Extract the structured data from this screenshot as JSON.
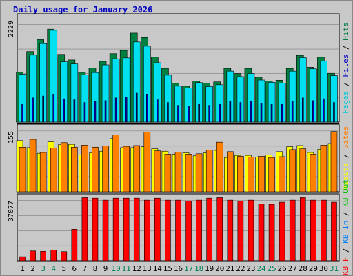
{
  "title": "Daily usage for January 2026",
  "chart_data": [
    {
      "type": "bar",
      "panel": "traffic",
      "ymax": 2229,
      "ymax_label": "2229",
      "grid": true,
      "categories": [
        "1",
        "2",
        "3",
        "4",
        "5",
        "6",
        "7",
        "8",
        "9",
        "10",
        "11",
        "12",
        "13",
        "14",
        "15",
        "16",
        "17",
        "18",
        "19",
        "20",
        "21",
        "22",
        "23",
        "24",
        "25",
        "26",
        "27",
        "28",
        "29",
        "30",
        "31"
      ],
      "series": [
        {
          "name": "Hits",
          "color": "#008040",
          "values": [
            1065,
            1510,
            1765,
            1990,
            1450,
            1330,
            1065,
            1160,
            1300,
            1465,
            1535,
            1905,
            1810,
            1395,
            1150,
            830,
            770,
            880,
            835,
            860,
            1150,
            1040,
            1150,
            960,
            880,
            895,
            1150,
            1430,
            1175,
            1390,
            1045
          ]
        },
        {
          "name": "Files",
          "color": "#00e0f0",
          "values": [
            1025,
            1435,
            1680,
            1965,
            1290,
            1245,
            1010,
            1060,
            1225,
            1355,
            1375,
            1715,
            1625,
            1270,
            1005,
            770,
            730,
            845,
            760,
            800,
            1090,
            975,
            1040,
            900,
            850,
            835,
            1090,
            1380,
            1140,
            1305,
            995
          ]
        },
        {
          "name": "Pages",
          "color": "#0000c0",
          "values": [
            380,
            520,
            560,
            600,
            500,
            480,
            420,
            440,
            460,
            520,
            540,
            620,
            600,
            480,
            420,
            360,
            340,
            380,
            360,
            380,
            440,
            420,
            440,
            400,
            380,
            380,
            440,
            520,
            460,
            500,
            420
          ]
        }
      ]
    },
    {
      "type": "bar",
      "panel": "visits",
      "ymax": 155,
      "ymax_label": "155",
      "grid": true,
      "categories": [
        "1",
        "2",
        "3",
        "4",
        "5",
        "6",
        "7",
        "8",
        "9",
        "10",
        "11",
        "12",
        "13",
        "14",
        "15",
        "16",
        "17",
        "18",
        "19",
        "20",
        "21",
        "22",
        "23",
        "24",
        "25",
        "26",
        "27",
        "28",
        "29",
        "30",
        "31"
      ],
      "series": [
        {
          "name": "Visits",
          "color": "#ffff00",
          "values": [
            125,
            108,
            94,
            122,
            115,
            116,
            90,
            95,
            99,
            130,
            108,
            108,
            110,
            105,
            99,
            92,
            95,
            88,
            95,
            101,
            84,
            89,
            89,
            85,
            90,
            98,
            110,
            113,
            96,
            104,
            118
          ]
        },
        {
          "name": "Sites",
          "color": "#ff8000",
          "values": [
            109,
            128,
            96,
            107,
            120,
            109,
            114,
            109,
            112,
            139,
            111,
            113,
            146,
            100,
            92,
            97,
            92,
            93,
            102,
            121,
            98,
            87,
            85,
            87,
            84,
            86,
            103,
            105,
            92,
            114,
            147
          ]
        }
      ]
    },
    {
      "type": "bar",
      "panel": "kbytes",
      "ymax": 37077,
      "ymax_label": "37077",
      "grid": true,
      "categories": [
        "1",
        "2",
        "3",
        "4",
        "5",
        "6",
        "7",
        "8",
        "9",
        "10",
        "11",
        "12",
        "13",
        "14",
        "15",
        "16",
        "17",
        "18",
        "19",
        "20",
        "21",
        "22",
        "23",
        "24",
        "25",
        "26",
        "27",
        "28",
        "29",
        "30",
        "31"
      ],
      "series": [
        {
          "name": "KB F",
          "color": "#ff0000",
          "values": [
            2400,
            5800,
            5600,
            6400,
            5400,
            18600,
            37300,
            37000,
            35800,
            37000,
            37000,
            37000,
            35800,
            37000,
            35800,
            35800,
            35200,
            35800,
            37000,
            37300,
            35800,
            35200,
            35800,
            33500,
            33400,
            34600,
            35800,
            37300,
            35800,
            35800,
            34600
          ]
        }
      ]
    }
  ],
  "x_labels": [
    {
      "text": "1",
      "weekend": false
    },
    {
      "text": "2",
      "weekend": false
    },
    {
      "text": "3",
      "weekend": true
    },
    {
      "text": "4",
      "weekend": true
    },
    {
      "text": "5",
      "weekend": false
    },
    {
      "text": "6",
      "weekend": false
    },
    {
      "text": "7",
      "weekend": false
    },
    {
      "text": "8",
      "weekend": false
    },
    {
      "text": "9",
      "weekend": false
    },
    {
      "text": "10",
      "weekend": true
    },
    {
      "text": "11",
      "weekend": true
    },
    {
      "text": "12",
      "weekend": false
    },
    {
      "text": "13",
      "weekend": false
    },
    {
      "text": "14",
      "weekend": false
    },
    {
      "text": "15",
      "weekend": false
    },
    {
      "text": "16",
      "weekend": false
    },
    {
      "text": "17",
      "weekend": true
    },
    {
      "text": "18",
      "weekend": true
    },
    {
      "text": "19",
      "weekend": false
    },
    {
      "text": "20",
      "weekend": false
    },
    {
      "text": "21",
      "weekend": false
    },
    {
      "text": "22",
      "weekend": false
    },
    {
      "text": "23",
      "weekend": false
    },
    {
      "text": "24",
      "weekend": true
    },
    {
      "text": "25",
      "weekend": true
    },
    {
      "text": "26",
      "weekend": false
    },
    {
      "text": "27",
      "weekend": false
    },
    {
      "text": "28",
      "weekend": false
    },
    {
      "text": "29",
      "weekend": false
    },
    {
      "text": "30",
      "weekend": false
    },
    {
      "text": "31",
      "weekend": true
    }
  ],
  "colors": {
    "weekday_label": "#000000",
    "weekend_label": "#00805c",
    "plot_bg": "#c8c8c8",
    "grid": "#808080",
    "title": "#0000c0",
    "separator": "#000000"
  },
  "side_legends": [
    [
      {
        "text": "Pages",
        "color": "#00c8d8"
      },
      {
        "text": " / ",
        "color": "#000000"
      },
      {
        "text": "Files",
        "color": "#0000c0"
      },
      {
        "text": " / ",
        "color": "#000000"
      },
      {
        "text": "Hits",
        "color": "#008040"
      }
    ],
    [
      {
        "text": "Visits",
        "color": "#ffff00"
      },
      {
        "text": " / ",
        "color": "#000000"
      },
      {
        "text": "Sites",
        "color": "#ff8000"
      }
    ],
    [
      {
        "text": "KB F",
        "color": "#ff0000"
      },
      {
        "text": " / ",
        "color": "#000000"
      },
      {
        "text": "KB In",
        "color": "#0080ff"
      },
      {
        "text": " / ",
        "color": "#000000"
      },
      {
        "text": "KB Out",
        "color": "#00c000"
      }
    ]
  ]
}
